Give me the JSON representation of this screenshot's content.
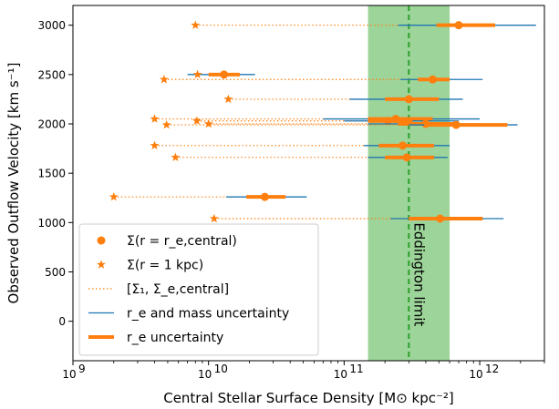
{
  "chart_data": {
    "type": "scatter",
    "xlabel": "Central Stellar Surface Density [M⊙ kpc⁻²]",
    "ylabel": "Observed Outflow Velocity [km s⁻¹]",
    "xscale": "log",
    "xlim": [
      1000000000.0,
      3000000000000.0
    ],
    "ylim": [
      -400,
      3200
    ],
    "x_ticks": [
      {
        "value": 1000000000.0,
        "label": "10",
        "exp": "9"
      },
      {
        "value": 10000000000.0,
        "label": "10",
        "exp": "10"
      },
      {
        "value": 100000000000.0,
        "label": "10",
        "exp": "11"
      },
      {
        "value": 1000000000000.0,
        "label": "10",
        "exp": "12"
      }
    ],
    "y_ticks": [
      0,
      500,
      1000,
      1500,
      2000,
      2500,
      3000
    ],
    "eddington": {
      "label": "Eddington limit",
      "line_x": 300000000000.0,
      "band": [
        150000000000.0,
        600000000000.0
      ],
      "band_color": "#98d294",
      "line_color": "#2ca02c"
    },
    "legend": {
      "placement": "lower-left",
      "entries": [
        {
          "marker": "circle",
          "text": "Σ(r = r_e,central)"
        },
        {
          "marker": "star",
          "text": "Σ(r = 1 kpc)"
        },
        {
          "marker": "dotted",
          "text": "[Σ₁, Σ_e,central]"
        },
        {
          "marker": "thin",
          "text": "r_e and mass uncertainty"
        },
        {
          "marker": "thick",
          "text": "r_e uncertainty"
        }
      ]
    },
    "colors": {
      "orange": "#ff7f0e",
      "blue": "#1f77b4"
    },
    "points": [
      {
        "v": 3000,
        "sigma_e": 700000000000.0,
        "sigma_1": 8000000000.0,
        "thin": [
          250000000000.0,
          2600000000000.0
        ],
        "thick": [
          480000000000.0,
          1300000000000.0
        ]
      },
      {
        "v": 2500,
        "sigma_e": 13000000000.0,
        "sigma_1": 8300000000.0,
        "thin": [
          7000000000.0,
          22000000000.0
        ],
        "thick": [
          10000000000.0,
          17000000000.0
        ]
      },
      {
        "v": 2450,
        "sigma_e": 450000000000.0,
        "sigma_1": 4700000000.0,
        "thin": [
          260000000000.0,
          1050000000000.0
        ],
        "thick": [
          350000000000.0,
          600000000000.0
        ]
      },
      {
        "v": 2250,
        "sigma_e": 300000000000.0,
        "sigma_1": 14000000000.0,
        "thin": [
          110000000000.0,
          750000000000.0
        ],
        "thick": [
          200000000000.0,
          500000000000.0
        ]
      },
      {
        "v": 2050,
        "sigma_e": 240000000000.0,
        "sigma_1": 4000000000.0,
        "thin": [
          70000000000.0,
          1000000000000.0
        ],
        "thick": [
          150000000000.0,
          450000000000.0
        ]
      },
      {
        "v": 2030,
        "sigma_e": 210000000000.0,
        "sigma_1": 8200000000.0,
        "thin": [
          100000000000.0,
          700000000000.0
        ],
        "thick": [
          150000000000.0,
          320000000000.0
        ]
      },
      {
        "v": 2000,
        "sigma_e": 400000000000.0,
        "sigma_1": 10000000000.0,
        "thin": [
          150000000000.0,
          1000000000000.0
        ],
        "thick": [
          250000000000.0,
          650000000000.0
        ]
      },
      {
        "v": 1990,
        "sigma_e": 670000000000.0,
        "sigma_1": 4900000000.0,
        "thin": [
          300000000000.0,
          1900000000000.0
        ],
        "thick": [
          390000000000.0,
          1600000000000.0
        ]
      },
      {
        "v": 1780,
        "sigma_e": 270000000000.0,
        "sigma_1": 4000000000.0,
        "thin": [
          140000000000.0,
          600000000000.0
        ],
        "thick": [
          180000000000.0,
          460000000000.0
        ]
      },
      {
        "v": 1660,
        "sigma_e": 290000000000.0,
        "sigma_1": 5700000000.0,
        "thin": [
          150000000000.0,
          580000000000.0
        ],
        "thick": [
          200000000000.0,
          460000000000.0
        ]
      },
      {
        "v": 1260,
        "sigma_e": 26000000000.0,
        "sigma_1": 2000000000.0,
        "thin": [
          13500000000.0,
          53000000000.0
        ],
        "thick": [
          19000000000.0,
          37000000000.0
        ]
      },
      {
        "v": 1040,
        "sigma_e": 510000000000.0,
        "sigma_1": 11000000000.0,
        "thin": [
          220000000000.0,
          1500000000000.0
        ],
        "thick": [
          300000000000.0,
          1050000000000.0
        ]
      }
    ]
  }
}
